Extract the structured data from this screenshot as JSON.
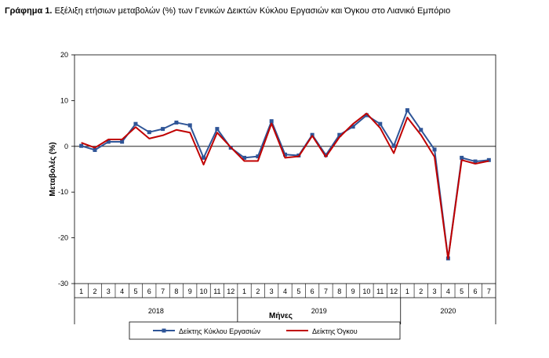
{
  "title": {
    "prefix": "Γράφημα 1.",
    "text": "Εξέλιξη ετήσιων μεταβολών (%) των Γενικών Δεικτών Κύκλου Εργασιών και Όγκου στο Λιανικό Εμπόριο"
  },
  "chart_data": {
    "type": "line",
    "ylabel": "Μεταβολές (%)",
    "xlabel": "Μήνες",
    "ylim": [
      -30,
      20
    ],
    "yticks": [
      -30,
      -20,
      -10,
      0,
      10,
      20
    ],
    "grid": false,
    "legend_position": "bottom",
    "categories": [
      "1",
      "2",
      "3",
      "4",
      "5",
      "6",
      "7",
      "8",
      "9",
      "10",
      "11",
      "12",
      "1",
      "2",
      "3",
      "4",
      "5",
      "6",
      "7",
      "8",
      "9",
      "10",
      "11",
      "12",
      "1",
      "2",
      "3",
      "4",
      "5",
      "6",
      "7"
    ],
    "year_groups": [
      {
        "label": "2018",
        "count": 12
      },
      {
        "label": "2019",
        "count": 12
      },
      {
        "label": "2020",
        "count": 7
      }
    ],
    "series": [
      {
        "name": "Δείκτης Κύκλου Εργασιών",
        "color": "#2f5597",
        "marker": "square",
        "values": [
          0.1,
          -0.8,
          1.0,
          1.0,
          4.9,
          3.1,
          3.8,
          5.2,
          4.6,
          -2.5,
          3.8,
          -0.3,
          -2.5,
          -2.2,
          5.5,
          -1.8,
          -2.0,
          2.5,
          -1.9,
          2.5,
          4.3,
          6.8,
          4.9,
          0.1,
          7.9,
          3.6,
          -0.7,
          -24.5,
          -2.5,
          -3.3,
          -3.0
        ]
      },
      {
        "name": "Δείκτης Όγκου",
        "color": "#c00000",
        "marker": "none",
        "values": [
          0.8,
          -0.3,
          1.5,
          1.5,
          4.2,
          1.7,
          2.4,
          3.6,
          3.0,
          -4.0,
          3.0,
          -0.2,
          -3.2,
          -3.2,
          5.0,
          -2.5,
          -2.2,
          2.3,
          -2.3,
          2.0,
          4.9,
          7.2,
          4.0,
          -1.5,
          6.3,
          2.5,
          -2.3,
          -24.6,
          -3.0,
          -3.8,
          -3.2
        ]
      }
    ]
  }
}
